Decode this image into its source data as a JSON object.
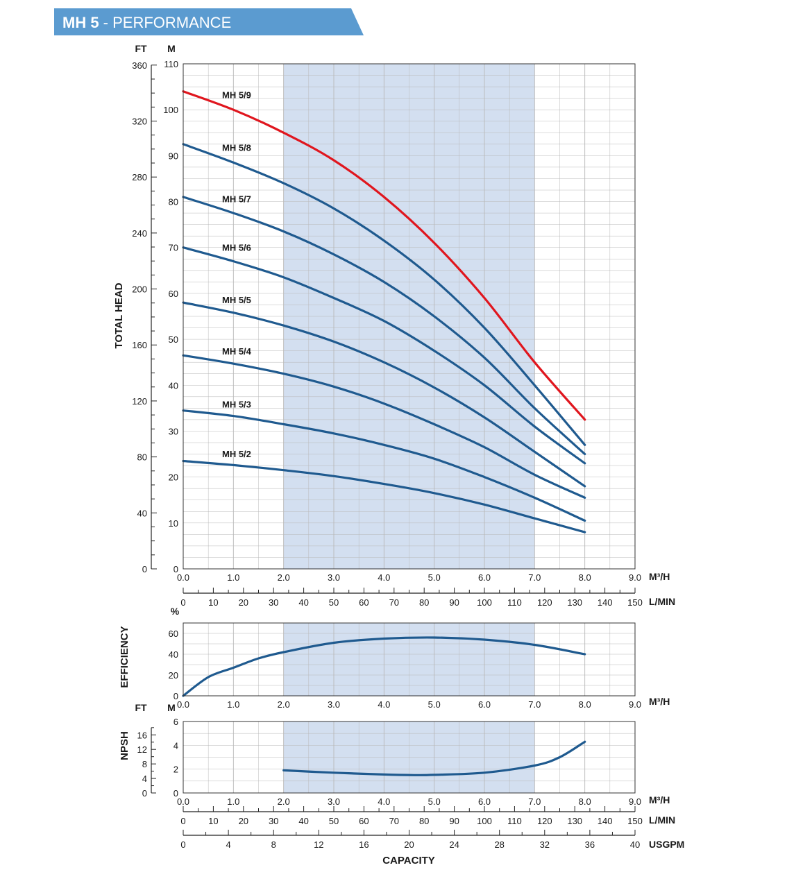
{
  "header": {
    "model": "MH 5",
    "subtitle": " - PERFORMANCE"
  },
  "colors": {
    "banner": "#5b9bd0",
    "highlight_band": "#d3dff0",
    "curve": "#1f5a8f",
    "curve_highlight": "#e0161e",
    "grid": "#b8b8b8"
  },
  "chart_data": [
    {
      "name": "head",
      "type": "line",
      "ylabel": "TOTAL HEAD",
      "units_left_outer": "FT",
      "units_left_inner": "M",
      "xunit": "M³/H",
      "xlim": [
        0,
        9
      ],
      "ylim": [
        0,
        110
      ],
      "ft_ticks": [
        "0",
        "40",
        "80",
        "120",
        "160",
        "200",
        "240",
        "280",
        "320",
        "360"
      ],
      "m_ticks": [
        "0",
        "10",
        "20",
        "30",
        "40",
        "50",
        "60",
        "70",
        "80",
        "90",
        "100",
        "110"
      ],
      "x_ticks": [
        "0.0",
        "1.0",
        "2.0",
        "3.0",
        "4.0",
        "5.0",
        "6.0",
        "7.0",
        "8.0",
        "9.0"
      ],
      "highlight_x": [
        2.0,
        7.0
      ],
      "series": [
        {
          "name": "MH 5/9",
          "highlight": true,
          "x": [
            0,
            1,
            2,
            3,
            4,
            5,
            6,
            7,
            8
          ],
          "y": [
            104,
            100,
            95,
            89,
            81,
            71,
            59,
            45,
            32.5
          ]
        },
        {
          "name": "MH 5/8",
          "x": [
            0,
            1,
            2,
            3,
            4,
            5,
            6,
            7,
            8
          ],
          "y": [
            92.5,
            88.5,
            84,
            78.5,
            71.5,
            63,
            52.5,
            40,
            27
          ]
        },
        {
          "name": "MH 5/7",
          "x": [
            0,
            1,
            2,
            3,
            4,
            5,
            6,
            7,
            8
          ],
          "y": [
            81,
            77.5,
            73.5,
            68.5,
            62.5,
            55,
            46,
            35,
            25
          ]
        },
        {
          "name": "MH 5/6",
          "x": [
            0,
            1,
            2,
            3,
            4,
            5,
            6,
            7,
            8
          ],
          "y": [
            70,
            67,
            63.5,
            59,
            54,
            47.5,
            40,
            31,
            23
          ]
        },
        {
          "name": "MH 5/5",
          "x": [
            0,
            1,
            2,
            3,
            4,
            5,
            6,
            7,
            8
          ],
          "y": [
            58,
            55.8,
            53,
            49.5,
            45,
            39.5,
            33,
            25.5,
            18
          ]
        },
        {
          "name": "MH 5/4",
          "x": [
            0,
            1,
            2,
            3,
            4,
            5,
            6,
            7,
            8
          ],
          "y": [
            46.5,
            44.7,
            42.5,
            39.7,
            36,
            31.5,
            26.5,
            20.5,
            15.5
          ]
        },
        {
          "name": "MH 5/3",
          "x": [
            0,
            1,
            2,
            3,
            4,
            5,
            6,
            7,
            8
          ],
          "y": [
            34.5,
            33.3,
            31.5,
            29.5,
            27,
            24,
            20,
            15.5,
            10.5
          ]
        },
        {
          "name": "MH 5/2",
          "x": [
            0,
            1,
            2,
            3,
            4,
            5,
            6,
            7,
            8
          ],
          "y": [
            23.5,
            22.6,
            21.5,
            20.2,
            18.5,
            16.5,
            14,
            11,
            8
          ]
        }
      ]
    },
    {
      "name": "efficiency",
      "type": "line",
      "ylabel": "EFFICIENCY",
      "yunit": "%",
      "xunit": "M³/H",
      "xlim": [
        0,
        9
      ],
      "ylim": [
        0,
        70
      ],
      "y_ticks": [
        "0",
        "20",
        "40",
        "60"
      ],
      "x_ticks": [
        "0.0",
        "1.0",
        "2.0",
        "3.0",
        "4.0",
        "5.0",
        "6.0",
        "7.0",
        "8.0",
        "9.0"
      ],
      "highlight_x": [
        2.0,
        7.0
      ],
      "series": [
        {
          "x": [
            0,
            0.5,
            1,
            1.5,
            2,
            3,
            4,
            5,
            6,
            7,
            8
          ],
          "y": [
            0,
            18,
            27,
            36,
            42,
            51,
            55,
            56,
            54,
            49,
            40
          ]
        }
      ]
    },
    {
      "name": "npsh",
      "type": "line",
      "ylabel": "NPSH",
      "units_left_outer": "FT",
      "units_left_inner": "M",
      "xunit": "M³/H",
      "xlim": [
        0,
        9
      ],
      "ylim": [
        0,
        6
      ],
      "m_ticks": [
        "0",
        "2",
        "4",
        "6"
      ],
      "ft_ticks": [
        "0",
        "4",
        "8",
        "12",
        "16"
      ],
      "x_ticks": [
        "0.0",
        "1.0",
        "2.0",
        "3.0",
        "4.0",
        "5.0",
        "6.0",
        "7.0",
        "8.0",
        "9.0"
      ],
      "highlight_x": [
        2.0,
        7.0
      ],
      "series": [
        {
          "x": [
            2,
            3,
            4,
            4.6,
            5,
            6,
            7,
            7.5,
            8
          ],
          "y": [
            1.9,
            1.7,
            1.55,
            1.5,
            1.52,
            1.7,
            2.3,
            3.0,
            4.3
          ]
        }
      ]
    }
  ],
  "capacity_scales": {
    "lmin_unit": "L/MIN",
    "lmin_ticks": [
      "0",
      "10",
      "20",
      "30",
      "40",
      "50",
      "60",
      "70",
      "80",
      "90",
      "100",
      "110",
      "120",
      "130",
      "140",
      "150"
    ],
    "usgpm_unit": "USGPM",
    "usgpm_ticks": [
      "0",
      "4",
      "8",
      "12",
      "16",
      "20",
      "24",
      "28",
      "32",
      "36",
      "40"
    ],
    "xlabel": "CAPACITY"
  }
}
